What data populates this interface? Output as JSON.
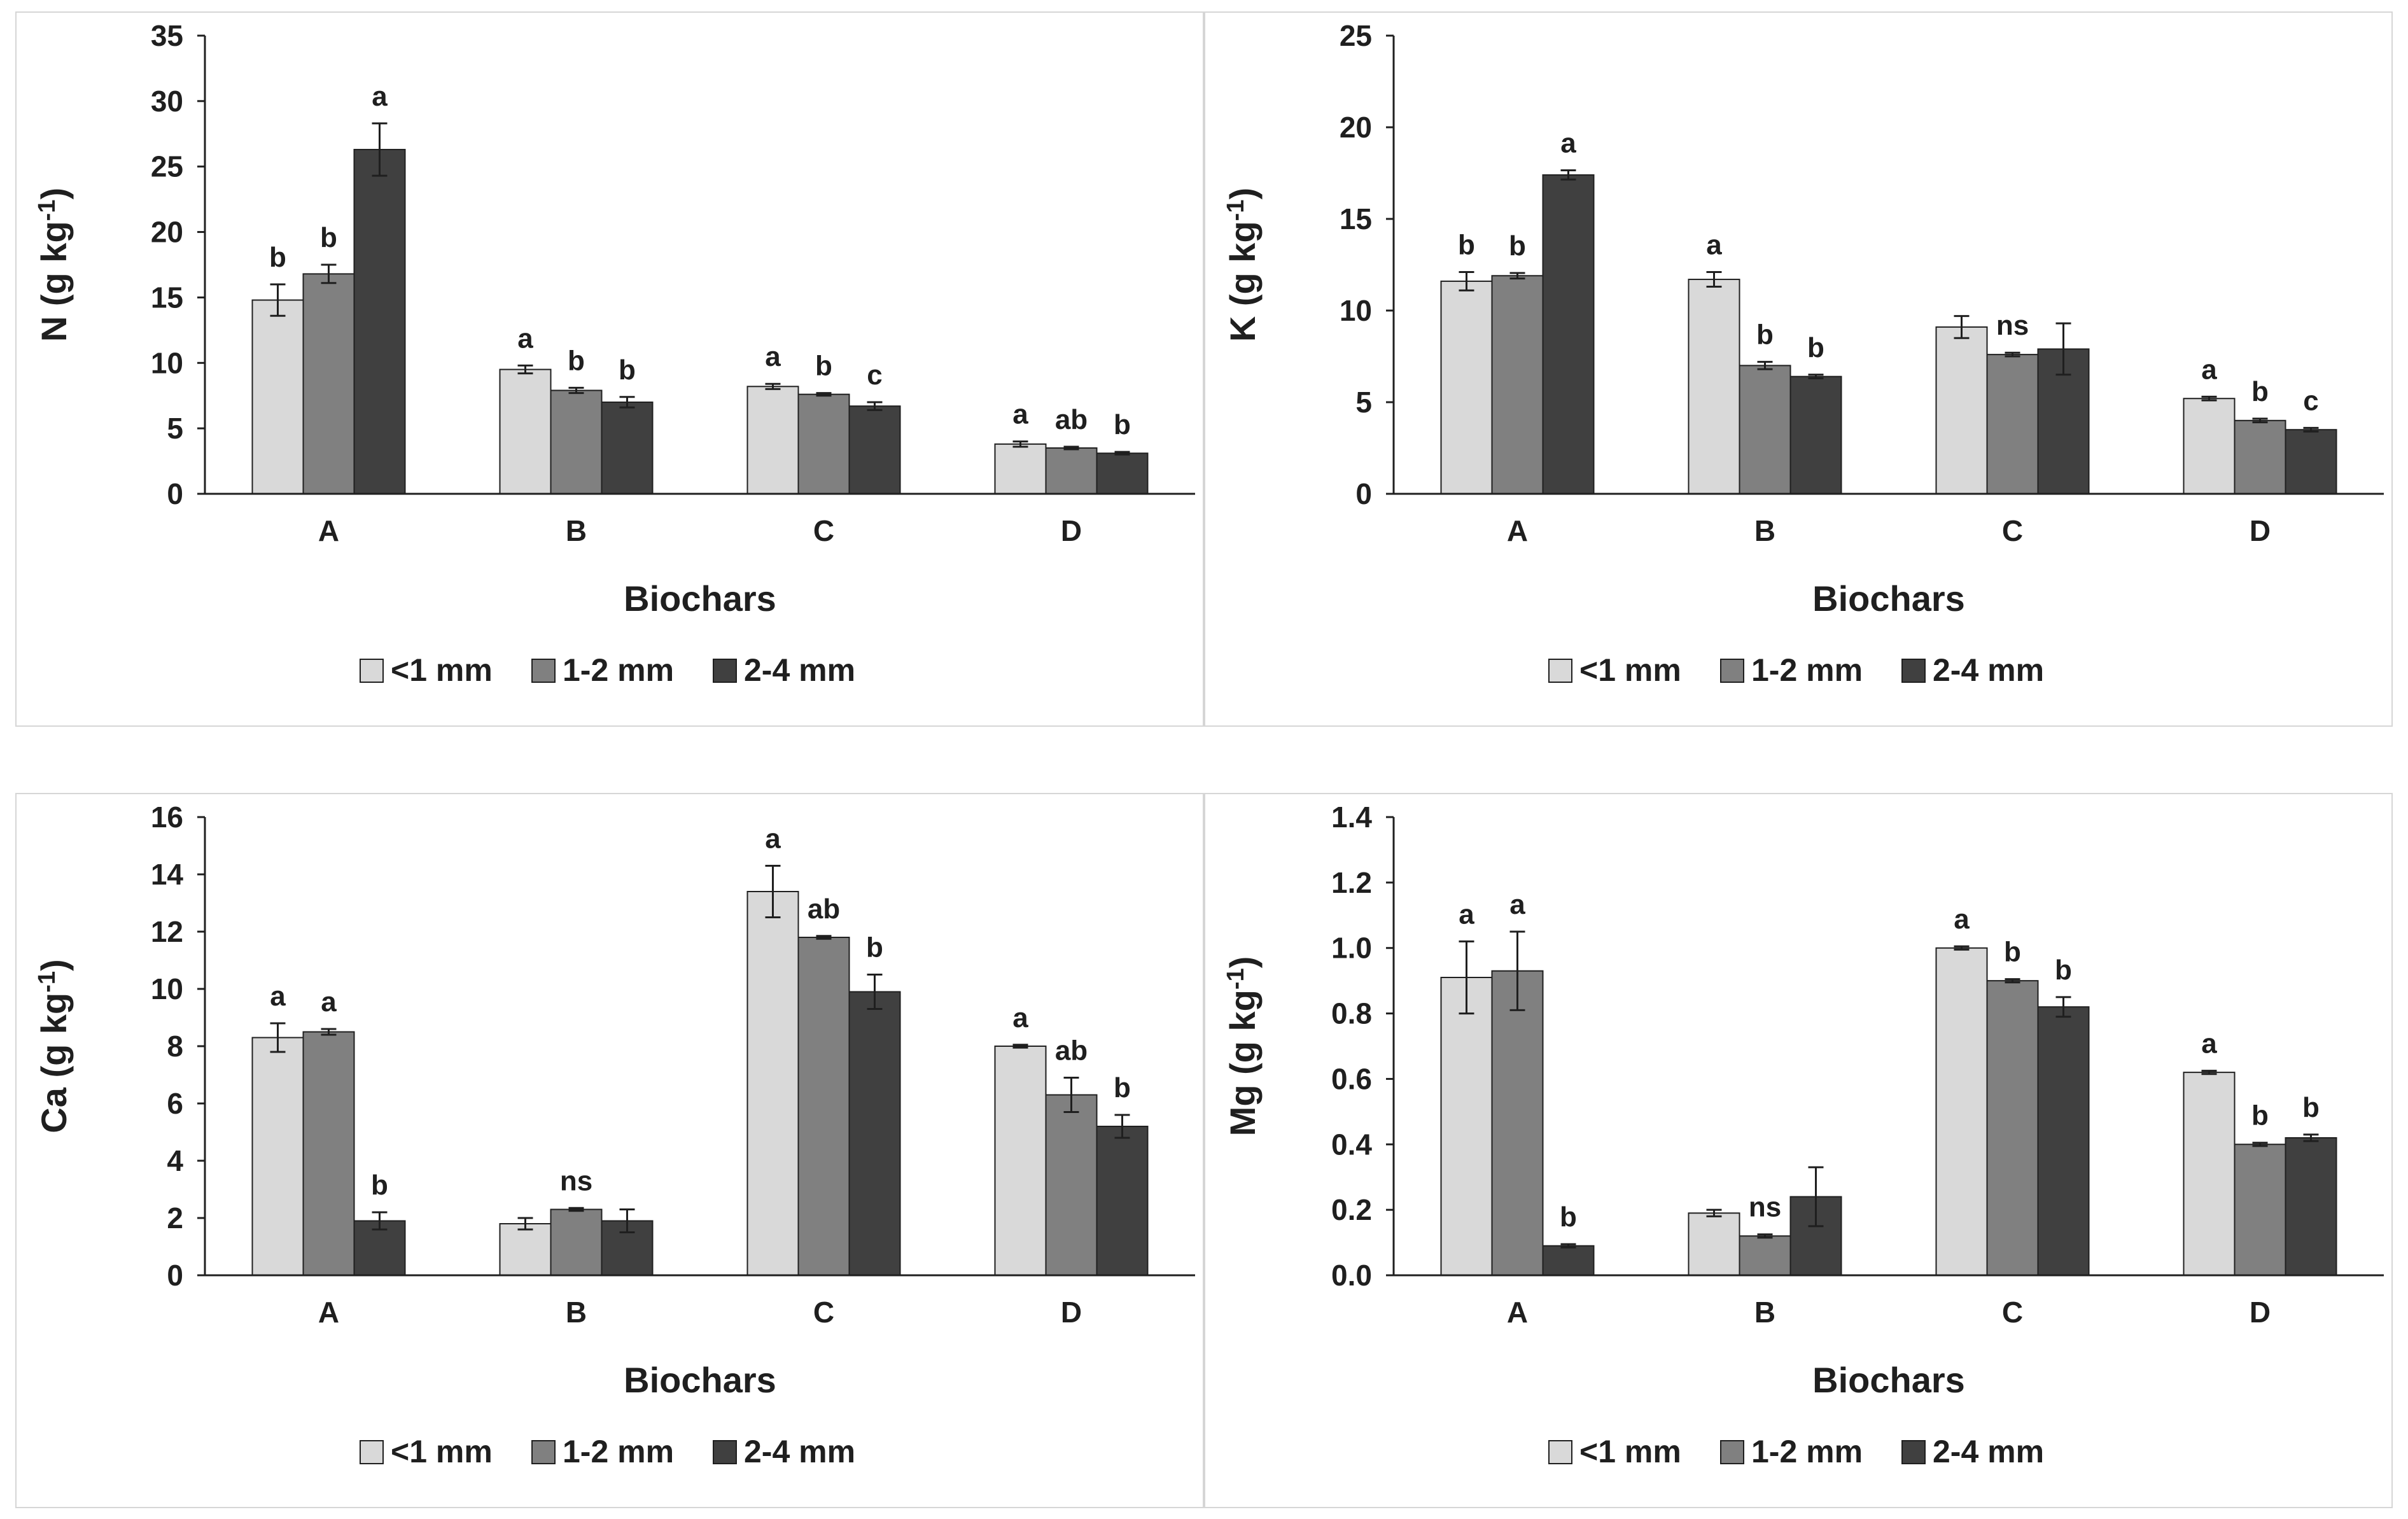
{
  "series_colors": [
    "#d9d9d9",
    "#808080",
    "#404040"
  ],
  "chart_data": [
    {
      "type": "bar",
      "xlabel": "Biochars",
      "ylabel_main": "N (g kg",
      "ylabel_sup": "-1",
      "ylabel_close": ")",
      "ylim": [
        0,
        35
      ],
      "yticks": [
        "0",
        "5",
        "10",
        "15",
        "20",
        "25",
        "30",
        "35"
      ],
      "categories": [
        "A",
        "B",
        "C",
        "D"
      ],
      "series": [
        {
          "name": "<1 mm",
          "values": [
            14.8,
            9.5,
            8.2,
            3.8
          ],
          "errors": [
            1.2,
            0.3,
            0.2,
            0.2
          ]
        },
        {
          "name": "1-2 mm",
          "values": [
            16.8,
            7.9,
            7.6,
            3.5
          ],
          "errors": [
            0.7,
            0.2,
            0.1,
            0.1
          ]
        },
        {
          "name": "2-4 mm",
          "values": [
            26.3,
            7.0,
            6.7,
            3.1
          ],
          "errors": [
            2.0,
            0.4,
            0.3,
            0.1
          ]
        }
      ],
      "letters": [
        [
          "b",
          "b",
          "a"
        ],
        [
          "a",
          "b",
          "b"
        ],
        [
          "a",
          "b",
          "c"
        ],
        [
          "a",
          "ab",
          "b"
        ]
      ]
    },
    {
      "type": "bar",
      "xlabel": "Biochars",
      "ylabel_main": "K (g kg",
      "ylabel_sup": "-1",
      "ylabel_close": ")",
      "ylim": [
        0,
        25
      ],
      "yticks": [
        "0",
        "5",
        "10",
        "15",
        "20",
        "25"
      ],
      "categories": [
        "A",
        "B",
        "C",
        "D"
      ],
      "series": [
        {
          "name": "<1 mm",
          "values": [
            11.6,
            11.7,
            9.1,
            5.2
          ],
          "errors": [
            0.5,
            0.4,
            0.6,
            0.1
          ]
        },
        {
          "name": "1-2 mm",
          "values": [
            11.9,
            7.0,
            7.6,
            4.0
          ],
          "errors": [
            0.15,
            0.2,
            0.1,
            0.1
          ]
        },
        {
          "name": "2-4 mm",
          "values": [
            17.4,
            6.4,
            7.9,
            3.5
          ],
          "errors": [
            0.25,
            0.1,
            1.4,
            0.1
          ]
        }
      ],
      "letters": [
        [
          "b",
          "b",
          "a"
        ],
        [
          "a",
          "b",
          "b"
        ],
        [
          "",
          "ns",
          ""
        ],
        [
          "a",
          "b",
          "c"
        ]
      ]
    },
    {
      "type": "bar",
      "xlabel": "Biochars",
      "ylabel_main": "Ca (g kg",
      "ylabel_sup": "-1",
      "ylabel_close": ")",
      "ylim": [
        0,
        16
      ],
      "yticks": [
        "0",
        "2",
        "4",
        "6",
        "8",
        "10",
        "12",
        "14",
        "16"
      ],
      "categories": [
        "A",
        "B",
        "C",
        "D"
      ],
      "series": [
        {
          "name": "<1 mm",
          "values": [
            8.3,
            1.8,
            13.4,
            8.0
          ],
          "errors": [
            0.5,
            0.2,
            0.9,
            0.05
          ]
        },
        {
          "name": "1-2 mm",
          "values": [
            8.5,
            2.3,
            11.8,
            6.3
          ],
          "errors": [
            0.1,
            0.05,
            0.05,
            0.6
          ]
        },
        {
          "name": "2-4 mm",
          "values": [
            1.9,
            1.9,
            9.9,
            5.2
          ],
          "errors": [
            0.3,
            0.4,
            0.6,
            0.4
          ]
        }
      ],
      "letters": [
        [
          "a",
          "a",
          "b"
        ],
        [
          "",
          "ns",
          ""
        ],
        [
          "a",
          "ab",
          "b"
        ],
        [
          "a",
          "ab",
          "b"
        ]
      ]
    },
    {
      "type": "bar",
      "xlabel": "Biochars",
      "ylabel_main": "Mg (g kg",
      "ylabel_sup": "-1",
      "ylabel_close": ")",
      "ylim": [
        0,
        1.4
      ],
      "yticks": [
        "0.0",
        "0.2",
        "0.4",
        "0.6",
        "0.8",
        "1.0",
        "1.2",
        "1.4"
      ],
      "categories": [
        "A",
        "B",
        "C",
        "D"
      ],
      "series": [
        {
          "name": "<1 mm",
          "values": [
            0.91,
            0.19,
            1.0,
            0.62
          ],
          "errors": [
            0.11,
            0.01,
            0.005,
            0.005
          ]
        },
        {
          "name": "1-2 mm",
          "values": [
            0.93,
            0.12,
            0.9,
            0.4
          ],
          "errors": [
            0.12,
            0.005,
            0.005,
            0.005
          ]
        },
        {
          "name": "2-4 mm",
          "values": [
            0.09,
            0.24,
            0.82,
            0.42
          ],
          "errors": [
            0.005,
            0.09,
            0.03,
            0.01
          ]
        }
      ],
      "letters": [
        [
          "a",
          "a",
          "b"
        ],
        [
          "",
          "ns",
          ""
        ],
        [
          "a",
          "b",
          "b"
        ],
        [
          "a",
          "b",
          "b"
        ]
      ]
    }
  ]
}
